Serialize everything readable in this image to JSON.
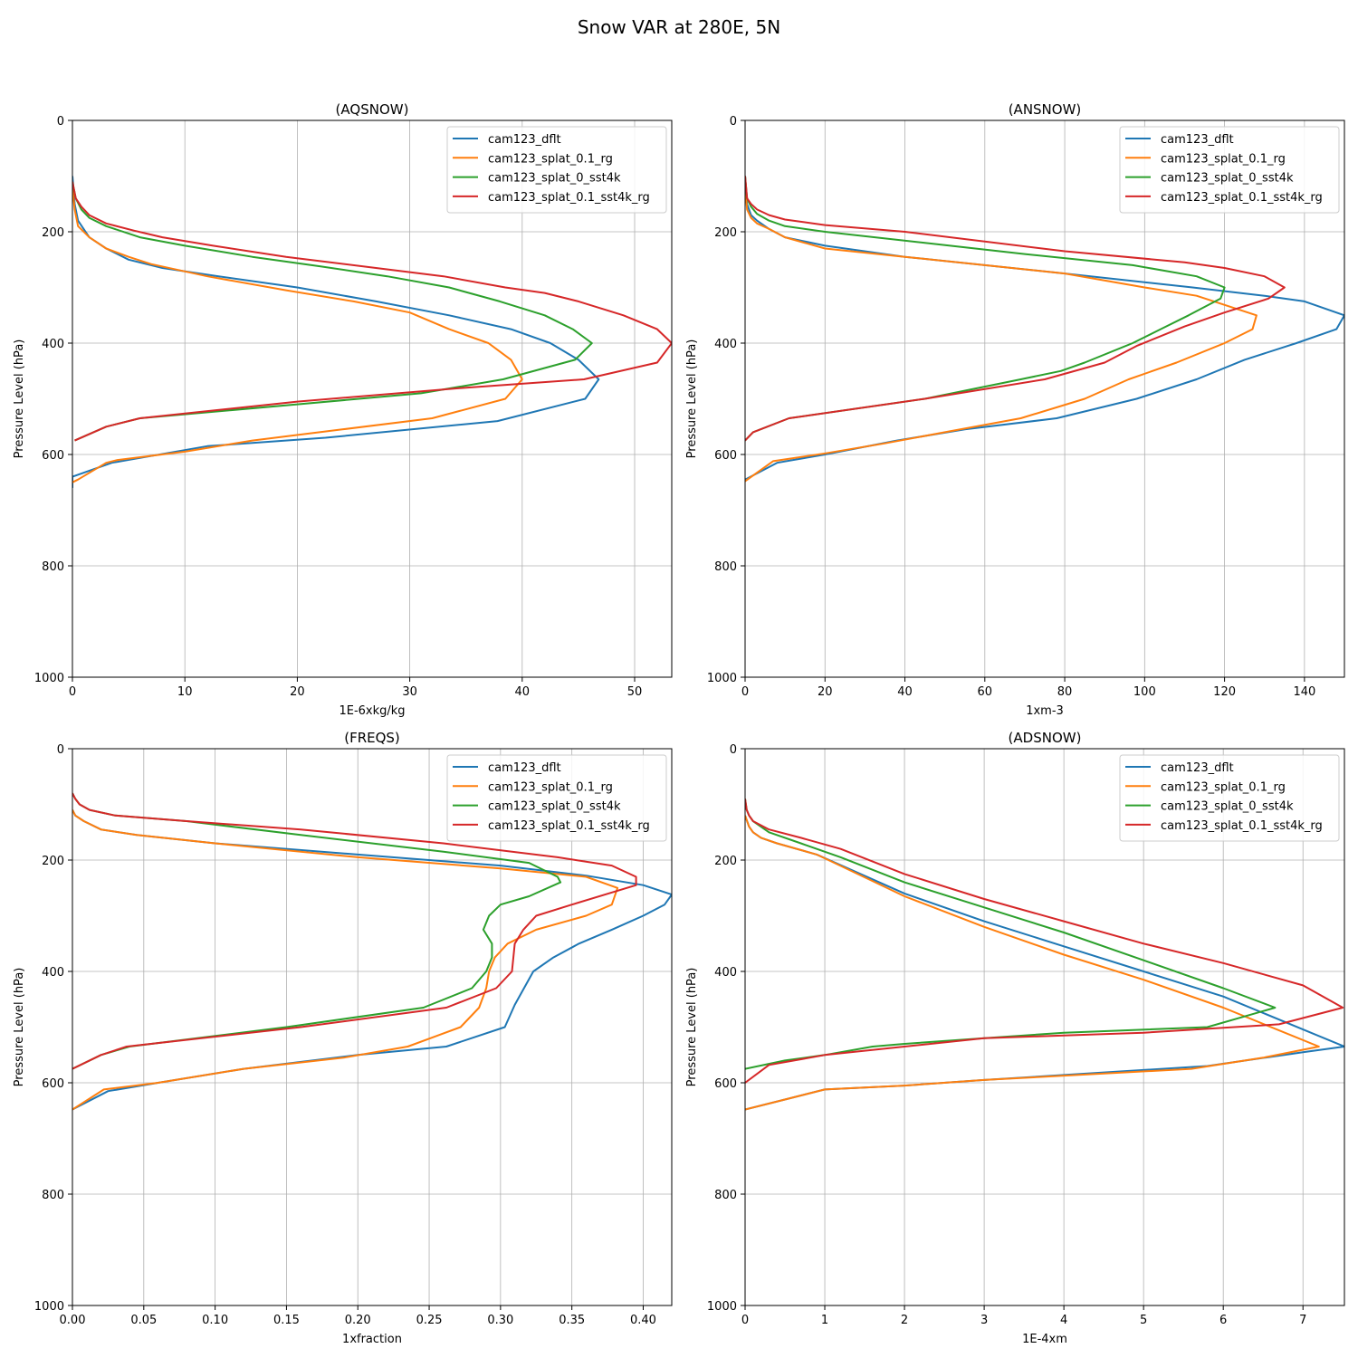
{
  "figure_title": "Snow VAR at 280E, 5N",
  "colors": {
    "cam123_dflt": "#1f77b4",
    "cam123_splat_0.1_rg": "#ff7f0e",
    "cam123_splat_0_sst4k": "#2ca02c",
    "cam123_splat_0.1_sst4k_rg": "#d62728"
  },
  "chart_data": [
    {
      "type": "line",
      "title": "(AQSNOW)",
      "xlabel": "1E-6xkg/kg",
      "ylabel": "Pressure Level (hPa)",
      "xlim": [
        0,
        53.3
      ],
      "ylim": [
        1000,
        0
      ],
      "xticks": [
        0,
        10,
        20,
        30,
        40,
        50
      ],
      "xtick_labels": [
        "0",
        "10",
        "20",
        "30",
        "40",
        "50"
      ],
      "yticks": [
        0,
        200,
        400,
        600,
        800,
        1000
      ],
      "ytick_labels": [
        "0",
        "200",
        "400",
        "600",
        "800",
        "1000"
      ],
      "grid": true,
      "legend": "upper right",
      "series": [
        {
          "name": "cam123_dflt",
          "x": [
            0,
            0.2,
            0.5,
            1.5,
            3,
            5,
            8,
            13,
            20,
            27,
            33.5,
            39,
            42.5,
            45,
            46.8,
            45.6,
            37.8,
            22.5,
            12,
            3.5,
            0,
            0
          ],
          "y": [
            100,
            150,
            180,
            210,
            230,
            250,
            265,
            280,
            300,
            325,
            350,
            375,
            400,
            430,
            465,
            500,
            540,
            570,
            585,
            615,
            640,
            660
          ]
        },
        {
          "name": "cam123_splat_0.1_rg",
          "x": [
            0,
            0.2,
            0.5,
            1.5,
            3,
            5,
            7,
            12,
            19,
            25,
            30,
            33.5,
            37,
            39,
            40,
            38.5,
            32,
            24,
            16,
            10,
            4,
            3,
            0.5,
            0
          ],
          "y": [
            120,
            160,
            190,
            210,
            230,
            245,
            258,
            280,
            305,
            325,
            345,
            375,
            400,
            430,
            465,
            500,
            535,
            555,
            575,
            595,
            610,
            615,
            645,
            650
          ]
        },
        {
          "name": "cam123_splat_0_sst4k",
          "x": [
            0,
            0.3,
            0.8,
            1.5,
            3,
            6,
            10,
            16,
            22,
            28,
            33.5,
            38,
            42,
            44.5,
            46.2,
            44.7,
            38.3,
            31,
            20,
            6,
            3,
            0.2
          ],
          "y": [
            110,
            140,
            160,
            175,
            190,
            210,
            225,
            245,
            262,
            280,
            300,
            325,
            350,
            375,
            400,
            430,
            465,
            490,
            510,
            535,
            550,
            575
          ]
        },
        {
          "name": "cam123_splat_0.1_sst4k_rg",
          "x": [
            0,
            0.3,
            0.8,
            1.5,
            3,
            5.5,
            8,
            12.5,
            19,
            27,
            33,
            38.5,
            42,
            45,
            49,
            52,
            53.3,
            52,
            45.5,
            35,
            20,
            6,
            3,
            0.2
          ],
          "y": [
            110,
            140,
            155,
            170,
            185,
            198,
            210,
            225,
            245,
            265,
            280,
            300,
            310,
            325,
            350,
            375,
            400,
            435,
            465,
            480,
            505,
            535,
            550,
            575
          ]
        }
      ]
    },
    {
      "type": "line",
      "title": "(ANSNOW)",
      "xlabel": "1xm-3",
      "ylabel": "Pressure Level (hPa)",
      "xlim": [
        0,
        150
      ],
      "ylim": [
        1000,
        0
      ],
      "xticks": [
        0,
        20,
        40,
        60,
        80,
        100,
        120,
        140
      ],
      "xtick_labels": [
        "0",
        "20",
        "40",
        "60",
        "80",
        "100",
        "120",
        "140"
      ],
      "yticks": [
        0,
        200,
        400,
        600,
        800,
        1000
      ],
      "ytick_labels": [
        "0",
        "200",
        "400",
        "600",
        "800",
        "1000"
      ],
      "grid": true,
      "legend": "upper right",
      "series": [
        {
          "name": "cam123_dflt",
          "x": [
            0,
            0.5,
            1.5,
            3,
            6,
            10,
            20,
            40,
            80,
            112,
            130,
            140,
            150,
            148,
            138,
            125,
            113,
            98,
            78,
            55,
            38,
            20,
            8,
            0
          ],
          "y": [
            100,
            150,
            170,
            180,
            195,
            210,
            225,
            245,
            275,
            300,
            315,
            325,
            350,
            375,
            400,
            430,
            465,
            500,
            535,
            555,
            575,
            600,
            615,
            645
          ]
        },
        {
          "name": "cam123_splat_0.1_rg",
          "x": [
            0,
            0.5,
            1.5,
            3,
            6,
            10,
            20,
            40,
            80,
            100,
            113,
            128,
            127,
            120,
            108,
            96,
            85,
            69,
            50,
            35,
            20,
            7,
            0
          ],
          "y": [
            120,
            160,
            175,
            185,
            195,
            210,
            230,
            245,
            275,
            300,
            315,
            350,
            375,
            400,
            435,
            465,
            500,
            535,
            560,
            580,
            598,
            612,
            648
          ]
        },
        {
          "name": "cam123_splat_0_sst4k",
          "x": [
            0,
            0.5,
            1.5,
            3,
            6,
            10,
            20,
            45,
            70,
            97,
            113,
            120,
            119,
            111,
            104,
            97,
            85,
            79,
            69,
            45,
            11,
            2,
            0
          ],
          "y": [
            100,
            140,
            155,
            168,
            180,
            190,
            200,
            220,
            240,
            260,
            280,
            300,
            320,
            350,
            375,
            400,
            435,
            450,
            465,
            500,
            535,
            560,
            575
          ]
        },
        {
          "name": "cam123_splat_0.1_sst4k_rg",
          "x": [
            0,
            0.5,
            1.5,
            3,
            6,
            10,
            20,
            40,
            80,
            110,
            120,
            130,
            135,
            131,
            120,
            110,
            98,
            90,
            75,
            45,
            11,
            2,
            0
          ],
          "y": [
            100,
            140,
            150,
            160,
            170,
            178,
            188,
            200,
            235,
            255,
            265,
            280,
            300,
            320,
            345,
            370,
            405,
            435,
            465,
            500,
            535,
            560,
            575
          ]
        }
      ]
    },
    {
      "type": "line",
      "title": "(FREQS)",
      "xlabel": "1xfraction",
      "ylabel": "Pressure Level (hPa)",
      "xlim": [
        0,
        0.42
      ],
      "ylim": [
        1000,
        0
      ],
      "xticks": [
        0,
        0.05,
        0.1,
        0.15,
        0.2,
        0.25,
        0.3,
        0.35,
        0.4
      ],
      "xtick_labels": [
        "0.00",
        "0.05",
        "0.10",
        "0.15",
        "0.20",
        "0.25",
        "0.30",
        "0.35",
        "0.40"
      ],
      "yticks": [
        0,
        200,
        400,
        600,
        800,
        1000
      ],
      "ytick_labels": [
        "0",
        "200",
        "400",
        "600",
        "800",
        "1000"
      ],
      "grid": true,
      "legend": "upper right",
      "series": [
        {
          "name": "cam123_dflt",
          "x": [
            0,
            0.002,
            0.008,
            0.02,
            0.045,
            0.1,
            0.2,
            0.3,
            0.36,
            0.4,
            0.42,
            0.415,
            0.4,
            0.378,
            0.355,
            0.337,
            0.323,
            0.31,
            0.303,
            0.262,
            0.2,
            0.12,
            0.06,
            0.025,
            0
          ],
          "y": [
            110,
            120,
            130,
            145,
            155,
            170,
            190,
            210,
            228,
            245,
            262,
            280,
            300,
            325,
            350,
            375,
            400,
            460,
            500,
            535,
            550,
            575,
            600,
            615,
            648
          ]
        },
        {
          "name": "cam123_splat_0.1_rg",
          "x": [
            0,
            0.002,
            0.008,
            0.02,
            0.045,
            0.1,
            0.2,
            0.3,
            0.36,
            0.382,
            0.378,
            0.36,
            0.325,
            0.305,
            0.296,
            0.292,
            0.29,
            0.285,
            0.272,
            0.235,
            0.19,
            0.12,
            0.06,
            0.022,
            0
          ],
          "y": [
            110,
            120,
            130,
            145,
            155,
            170,
            195,
            215,
            230,
            250,
            280,
            300,
            325,
            350,
            375,
            400,
            430,
            465,
            500,
            535,
            555,
            575,
            600,
            612,
            648
          ]
        },
        {
          "name": "cam123_splat_0_sst4k",
          "x": [
            0,
            0.002,
            0.005,
            0.012,
            0.03,
            0.08,
            0.16,
            0.26,
            0.32,
            0.34,
            0.342,
            0.32,
            0.3,
            0.292,
            0.288,
            0.294,
            0.294,
            0.29,
            0.28,
            0.246,
            0.15,
            0.04,
            0.02,
            0
          ],
          "y": [
            80,
            90,
            100,
            110,
            120,
            130,
            155,
            185,
            205,
            230,
            240,
            265,
            280,
            300,
            325,
            350,
            375,
            400,
            430,
            465,
            500,
            535,
            550,
            575
          ]
        },
        {
          "name": "cam123_splat_0.1_sst4k_rg",
          "x": [
            0,
            0.002,
            0.005,
            0.012,
            0.03,
            0.08,
            0.16,
            0.26,
            0.34,
            0.378,
            0.395,
            0.395,
            0.35,
            0.325,
            0.316,
            0.31,
            0.308,
            0.297,
            0.262,
            0.16,
            0.038,
            0.02,
            0
          ],
          "y": [
            80,
            90,
            100,
            110,
            120,
            130,
            145,
            170,
            195,
            210,
            230,
            245,
            280,
            300,
            325,
            350,
            400,
            430,
            465,
            500,
            535,
            550,
            575
          ]
        }
      ]
    },
    {
      "type": "line",
      "title": "(ADSNOW)",
      "xlabel": "1E-4xm",
      "ylabel": "Pressure Level (hPa)",
      "xlim": [
        0,
        7.52
      ],
      "ylim": [
        1000,
        0
      ],
      "xticks": [
        0,
        1,
        2,
        3,
        4,
        5,
        6,
        7
      ],
      "xtick_labels": [
        "0",
        "1",
        "2",
        "3",
        "4",
        "5",
        "6",
        "7"
      ],
      "yticks": [
        0,
        200,
        400,
        600,
        800,
        1000
      ],
      "ytick_labels": [
        "0",
        "200",
        "400",
        "600",
        "800",
        "1000"
      ],
      "grid": true,
      "legend": "upper right",
      "series": [
        {
          "name": "cam123_dflt",
          "x": [
            0,
            0.05,
            0.1,
            0.2,
            0.4,
            0.9,
            2,
            3,
            4,
            5,
            6,
            7.52,
            7,
            5.8,
            3,
            2,
            1,
            0.5,
            0
          ],
          "y": [
            120,
            140,
            150,
            160,
            170,
            190,
            260,
            310,
            355,
            400,
            445,
            535,
            545,
            570,
            595,
            605,
            612,
            630,
            648
          ]
        },
        {
          "name": "cam123_splat_0.1_rg",
          "x": [
            0,
            0.05,
            0.1,
            0.2,
            0.4,
            0.9,
            2,
            3,
            4,
            5,
            6,
            7.2,
            6.5,
            5.6,
            3,
            2,
            1,
            0.5,
            0
          ],
          "y": [
            120,
            140,
            150,
            160,
            170,
            190,
            265,
            320,
            370,
            415,
            465,
            535,
            555,
            575,
            595,
            605,
            612,
            630,
            648
          ]
        },
        {
          "name": "cam123_splat_0_sst4k",
          "x": [
            0,
            0.02,
            0.05,
            0.1,
            0.3,
            0.7,
            1.2,
            2,
            3,
            4,
            5,
            6,
            6.65,
            5.8,
            4,
            3,
            2,
            1.6,
            1,
            0.5,
            0
          ],
          "y": [
            90,
            110,
            120,
            130,
            150,
            170,
            195,
            240,
            285,
            330,
            380,
            430,
            465,
            500,
            510,
            520,
            530,
            535,
            550,
            560,
            575
          ]
        },
        {
          "name": "cam123_splat_0.1_sst4k_rg",
          "x": [
            0,
            0.02,
            0.05,
            0.1,
            0.3,
            0.7,
            1.2,
            2,
            3,
            4,
            5,
            6,
            7,
            7.5,
            6.7,
            5,
            4,
            3,
            2,
            1,
            0.3,
            0
          ],
          "y": [
            90,
            110,
            120,
            130,
            145,
            160,
            180,
            225,
            270,
            310,
            350,
            385,
            425,
            465,
            495,
            510,
            515,
            520,
            535,
            550,
            568,
            600
          ]
        }
      ]
    }
  ]
}
